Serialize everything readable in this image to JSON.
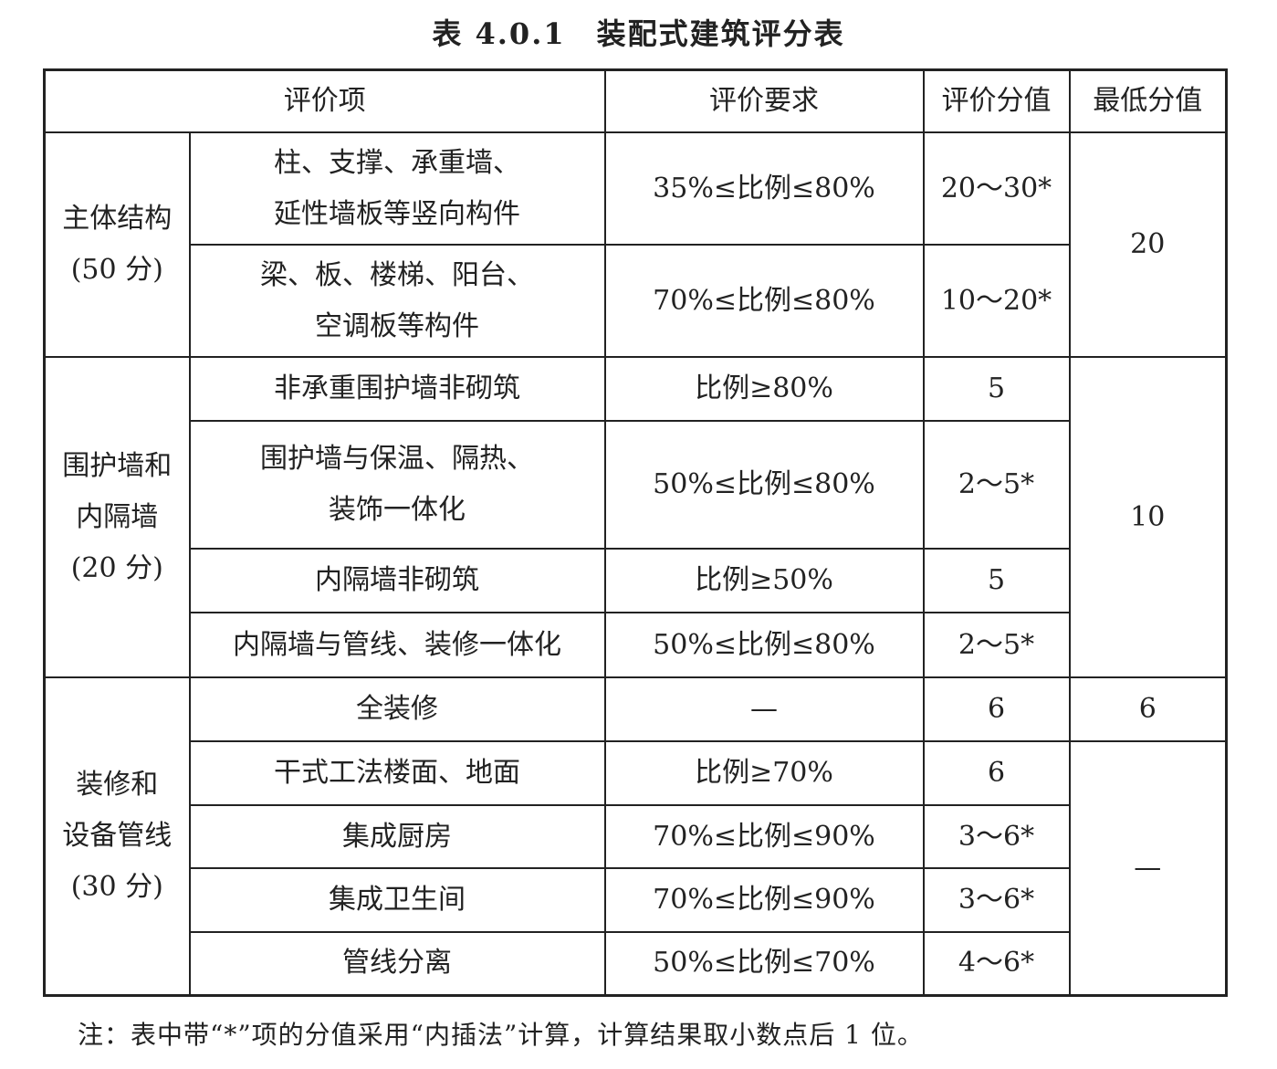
{
  "title": "表 4.0.1　装配式建筑评分表",
  "headers": [
    "评价项",
    "评价要求",
    "评价分值",
    "最低分值"
  ],
  "groups": [
    {
      "name": "主体结构\n(50 分)",
      "min": "20",
      "rows": [
        {
          "item": "柱、支撑、承重墙、\n延性墙板等竖向构件",
          "req": "35%≤比例≤80%",
          "score": "20～30*"
        },
        {
          "item": "梁、板、楼梯、阳台、\n空调板等构件",
          "req": "70%≤比例≤80%",
          "score": "10～20*"
        }
      ]
    },
    {
      "name": "围护墙和\n内隔墙\n(20 分)",
      "min": "10",
      "rows": [
        {
          "item": "非承重围护墙非砌筑",
          "req": "比例≥80%",
          "score": "5"
        },
        {
          "item": "围护墙与保温、隔热、\n装饰一体化",
          "req": "50%≤比例≤80%",
          "score": "2～5*"
        },
        {
          "item": "内隔墙非砌筑",
          "req": "比例≥50%",
          "score": "5"
        },
        {
          "item": "内隔墙与管线、装修一体化",
          "req": "50%≤比例≤80%",
          "score": "2～5*"
        }
      ]
    },
    {
      "name": "装修和\n设备管线\n(30 分)",
      "min_first": "6",
      "min_rest": "—",
      "rows": [
        {
          "item": "全装修",
          "req": "—",
          "score": "6"
        },
        {
          "item": "干式工法楼面、地面",
          "req": "比例≥70%",
          "score": "6"
        },
        {
          "item": "集成厨房",
          "req": "70%≤比例≤90%",
          "score": "3～6*"
        },
        {
          "item": "集成卫生间",
          "req": "70%≤比例≤90%",
          "score": "3～6*"
        },
        {
          "item": "管线分离",
          "req": "50%≤比例≤70%",
          "score": "4～6*"
        }
      ]
    }
  ],
  "note": "注：表中带“*”项的分值采用“内插法”计算，计算结果取小数点后 1 位。"
}
